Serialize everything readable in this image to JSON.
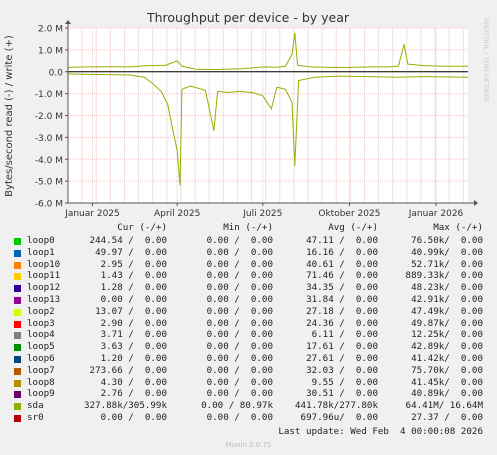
{
  "title": "Throughput per device - by year",
  "ylabel": "Bytes/second read (-) / write (+)",
  "watermark": "RRDTOOL / TOBI OETIKER",
  "columns": {
    "cur": "Cur (-/+)",
    "min": "Min (-/+)",
    "avg": "Avg (-/+)",
    "max": "Max (-/+)"
  },
  "legend": [
    {
      "name": "loop0",
      "color": "#00cc00",
      "cur": "244.54 /  0.00",
      "min": "0.00 /  0.00",
      "avg": "47.11 /  0.00",
      "max": "76.50k/  0.00"
    },
    {
      "name": "loop1",
      "color": "#0066b3",
      "cur": "49.97 /  0.00",
      "min": "0.00 /  0.00",
      "avg": "16.16 /  0.00",
      "max": "40.99k/  0.00"
    },
    {
      "name": "loop10",
      "color": "#ff8000",
      "cur": "2.95 /  0.00",
      "min": "0.00 /  0.00",
      "avg": "40.61 /  0.00",
      "max": "52.71k/  0.00"
    },
    {
      "name": "loop11",
      "color": "#ffcc00",
      "cur": "1.43 /  0.00",
      "min": "0.00 /  0.00",
      "avg": "71.46 /  0.00",
      "max": "889.33k/  0.00"
    },
    {
      "name": "loop12",
      "color": "#330099",
      "cur": "1.28 /  0.00",
      "min": "0.00 /  0.00",
      "avg": "34.35 /  0.00",
      "max": "48.23k/  0.00"
    },
    {
      "name": "loop13",
      "color": "#990099",
      "cur": "0.00 /  0.00",
      "min": "0.00 /  0.00",
      "avg": "31.84 /  0.00",
      "max": "42.91k/  0.00"
    },
    {
      "name": "loop2",
      "color": "#ccff00",
      "cur": "13.07 /  0.00",
      "min": "0.00 /  0.00",
      "avg": "27.18 /  0.00",
      "max": "47.49k/  0.00"
    },
    {
      "name": "loop3",
      "color": "#ff0000",
      "cur": "2.90 /  0.00",
      "min": "0.00 /  0.00",
      "avg": "24.36 /  0.00",
      "max": "49.87k/  0.00"
    },
    {
      "name": "loop4",
      "color": "#808080",
      "cur": "3.71 /  0.00",
      "min": "0.00 /  0.00",
      "avg": "6.11 /  0.00",
      "max": "12.25k/  0.00"
    },
    {
      "name": "loop5",
      "color": "#008f00",
      "cur": "3.63 /  0.00",
      "min": "0.00 /  0.00",
      "avg": "17.61 /  0.00",
      "max": "42.89k/  0.00"
    },
    {
      "name": "loop6",
      "color": "#00487d",
      "cur": "1.20 /  0.00",
      "min": "0.00 /  0.00",
      "avg": "27.61 /  0.00",
      "max": "41.42k/  0.00"
    },
    {
      "name": "loop7",
      "color": "#b35a00",
      "cur": "273.66 /  0.00",
      "min": "0.00 /  0.00",
      "avg": "32.03 /  0.00",
      "max": "75.70k/  0.00"
    },
    {
      "name": "loop8",
      "color": "#b38f00",
      "cur": "4.30 /  0.00",
      "min": "0.00 /  0.00",
      "avg": "9.55 /  0.00",
      "max": "41.45k/  0.00"
    },
    {
      "name": "loop9",
      "color": "#6b006b",
      "cur": "2.76 /  0.00",
      "min": "0.00 /  0.00",
      "avg": "30.51 /  0.00",
      "max": "40.89k/  0.00"
    },
    {
      "name": "sda",
      "color": "#8fb300",
      "cur": "327.88k/305.99k",
      "min": "0.00 / 80.97k",
      "avg": "441.78k/277.80k",
      "max": "64.41M/ 16.64M"
    },
    {
      "name": "sr0",
      "color": "#b30000",
      "cur": "0.00 /  0.00",
      "min": "0.00 /  0.00",
      "avg": "697.96u/  0.00",
      "max": "27.37 /  0.00"
    }
  ],
  "last_update": "Last update: Wed Feb  4 00:00:08 2026",
  "munin_version": "Munin 2.0.75",
  "chart_data": {
    "type": "line",
    "title": "Throughput per device - by year",
    "ylabel": "Bytes/second read (-) / write (+)",
    "ylim": [
      -6.0,
      2.0
    ],
    "y_unit": "M",
    "y_ticks": [
      {
        "v": 2.0,
        "label": "2.0 M"
      },
      {
        "v": 1.0,
        "label": "1.0 M"
      },
      {
        "v": 0.0,
        "label": "0.0"
      },
      {
        "v": -1.0,
        "label": "-1.0 M"
      },
      {
        "v": -2.0,
        "label": "-2.0 M"
      },
      {
        "v": -3.0,
        "label": "-3.0 M"
      },
      {
        "v": -4.0,
        "label": "-4.0 M"
      },
      {
        "v": -5.0,
        "label": "-5.0 M"
      },
      {
        "v": -6.0,
        "label": "-6.0 M"
      }
    ],
    "x_range": [
      "2024-12-06",
      "2026-02-04"
    ],
    "x_ticks": [
      {
        "date": "2025-01-01",
        "label": "Januar 2025"
      },
      {
        "date": "2025-04-01",
        "label": "April 2025"
      },
      {
        "date": "2025-07-01",
        "label": "Juli 2025"
      },
      {
        "date": "2025-10-01",
        "label": "Oktober 2025"
      },
      {
        "date": "2026-01-01",
        "label": "Januar 2026"
      }
    ],
    "grid": true,
    "series": [
      {
        "name": "sda",
        "color": "#8fb300",
        "write": [
          [
            "2024-12-06",
            0.2
          ],
          [
            "2024-12-28",
            0.22
          ],
          [
            "2025-01-20",
            0.23
          ],
          [
            "2025-02-10",
            0.22
          ],
          [
            "2025-03-01",
            0.28
          ],
          [
            "2025-03-20",
            0.3
          ],
          [
            "2025-04-01",
            0.5
          ],
          [
            "2025-04-06",
            0.25
          ],
          [
            "2025-04-20",
            0.12
          ],
          [
            "2025-05-10",
            0.1
          ],
          [
            "2025-05-25",
            0.12
          ],
          [
            "2025-06-10",
            0.14
          ],
          [
            "2025-06-25",
            0.2
          ],
          [
            "2025-07-05",
            0.22
          ],
          [
            "2025-07-15",
            0.2
          ],
          [
            "2025-07-25",
            0.25
          ],
          [
            "2025-08-01",
            0.8
          ],
          [
            "2025-08-04",
            1.78
          ],
          [
            "2025-08-07",
            0.3
          ],
          [
            "2025-08-20",
            0.22
          ],
          [
            "2025-09-10",
            0.2
          ],
          [
            "2025-10-01",
            0.2
          ],
          [
            "2025-10-25",
            0.22
          ],
          [
            "2025-11-10",
            0.22
          ],
          [
            "2025-11-22",
            0.25
          ],
          [
            "2025-11-28",
            1.25
          ],
          [
            "2025-12-02",
            0.35
          ],
          [
            "2025-12-20",
            0.28
          ],
          [
            "2026-01-10",
            0.25
          ],
          [
            "2026-02-04",
            0.25
          ]
        ],
        "read": [
          [
            "2024-12-06",
            -0.1
          ],
          [
            "2024-12-28",
            -0.12
          ],
          [
            "2025-01-20",
            -0.13
          ],
          [
            "2025-02-10",
            -0.15
          ],
          [
            "2025-02-25",
            -0.25
          ],
          [
            "2025-03-05",
            -0.5
          ],
          [
            "2025-03-15",
            -0.9
          ],
          [
            "2025-03-22",
            -1.5
          ],
          [
            "2025-03-28",
            -2.8
          ],
          [
            "2025-04-01",
            -3.6
          ],
          [
            "2025-04-04",
            -5.2
          ],
          [
            "2025-04-06",
            -0.8
          ],
          [
            "2025-04-15",
            -0.65
          ],
          [
            "2025-05-01",
            -0.85
          ],
          [
            "2025-05-10",
            -2.7
          ],
          [
            "2025-05-14",
            -0.9
          ],
          [
            "2025-05-25",
            -0.95
          ],
          [
            "2025-06-05",
            -0.9
          ],
          [
            "2025-06-20",
            -0.95
          ],
          [
            "2025-07-01",
            -1.1
          ],
          [
            "2025-07-10",
            -1.7
          ],
          [
            "2025-07-16",
            -0.7
          ],
          [
            "2025-07-25",
            -0.8
          ],
          [
            "2025-08-01",
            -1.4
          ],
          [
            "2025-08-04",
            -4.3
          ],
          [
            "2025-08-08",
            -0.4
          ],
          [
            "2025-08-25",
            -0.25
          ],
          [
            "2025-09-20",
            -0.2
          ],
          [
            "2025-10-20",
            -0.22
          ],
          [
            "2025-11-20",
            -0.25
          ],
          [
            "2025-12-20",
            -0.22
          ],
          [
            "2026-02-04",
            -0.25
          ]
        ]
      }
    ]
  }
}
